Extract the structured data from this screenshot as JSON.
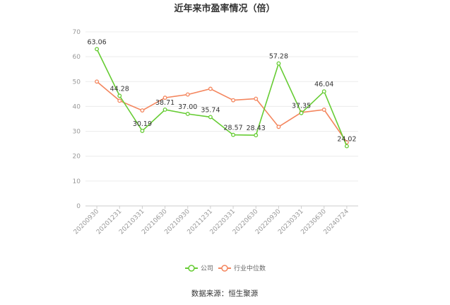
{
  "chart_data": {
    "type": "line",
    "title": "近年来市盈率情况（倍）",
    "xlabel": "",
    "ylabel": "",
    "ylim": [
      0,
      70
    ],
    "yticks": [
      0,
      10,
      20,
      30,
      40,
      50,
      60,
      70
    ],
    "grid": true,
    "legend_position": "bottom",
    "categories": [
      "20200930",
      "20201231",
      "20210331",
      "20210630",
      "20210930",
      "20211231",
      "20220331",
      "20220630",
      "20220930",
      "20230331",
      "20230630",
      "20240724"
    ],
    "series": [
      {
        "name": "公司",
        "color": "#66cc33",
        "values": [
          63.06,
          44.28,
          30.19,
          38.71,
          37.0,
          35.74,
          28.57,
          28.43,
          57.28,
          37.35,
          46.04,
          24.02
        ],
        "labels": [
          "63.06",
          "44.28",
          "30.19",
          "38.71",
          "37.00",
          "35.74",
          "28.57",
          "28.43",
          "57.28",
          "37.35",
          "46.04",
          "24.02"
        ]
      },
      {
        "name": "行业中位数",
        "color": "#f4865e",
        "values": [
          50.0,
          42.3,
          38.4,
          43.5,
          44.8,
          47.1,
          42.5,
          43.1,
          31.8,
          37.6,
          38.7,
          25.6
        ]
      }
    ]
  },
  "source": "数据来源：恒生聚源"
}
